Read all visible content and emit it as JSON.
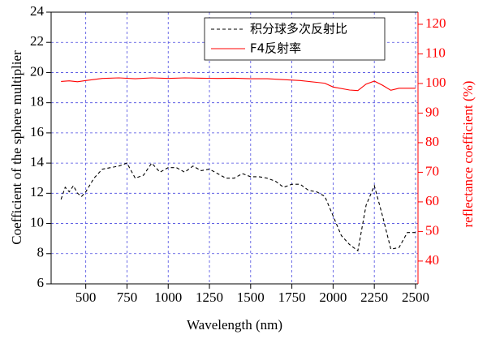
{
  "chart_data": {
    "type": "line",
    "x_label": "Wavelength (nm)",
    "y_label": "Coefficient of the sphere multiplier",
    "y2_label": "reflectance coefficient (%)",
    "xlim": [
      290,
      2515
    ],
    "xticks": [
      500,
      750,
      1000,
      1250,
      1500,
      1750,
      2000,
      2250,
      2500
    ],
    "ylim": [
      6,
      24
    ],
    "yticks": [
      6,
      8,
      10,
      12,
      14,
      16,
      18,
      20,
      22,
      24
    ],
    "y2lim": [
      32.3,
      124.1
    ],
    "y2ticks": [
      40,
      50,
      60,
      70,
      80,
      90,
      100,
      110,
      120
    ],
    "grid": true,
    "legend": "upper right",
    "series": [
      {
        "name": "积分球多次反射比",
        "color": "#000000",
        "dash": true,
        "x": [
          350,
          375,
          400,
          425,
          450,
          475,
          500,
          550,
          600,
          650,
          700,
          750,
          800,
          850,
          900,
          950,
          1000,
          1050,
          1100,
          1150,
          1200,
          1250,
          1300,
          1350,
          1400,
          1450,
          1500,
          1550,
          1600,
          1650,
          1700,
          1750,
          1800,
          1850,
          1900,
          1950,
          2000,
          2050,
          2100,
          2150,
          2200,
          2250,
          2300,
          2350,
          2400,
          2450,
          2500
        ],
        "values": [
          11.6,
          12.4,
          12.1,
          12.5,
          12.0,
          11.8,
          12.1,
          13.0,
          13.6,
          13.7,
          13.8,
          14.0,
          13.0,
          13.2,
          14.0,
          13.4,
          13.7,
          13.7,
          13.4,
          13.8,
          13.5,
          13.6,
          13.3,
          13.0,
          13.0,
          13.3,
          13.1,
          13.1,
          13.0,
          12.8,
          12.4,
          12.6,
          12.6,
          12.2,
          12.1,
          11.8,
          10.5,
          9.2,
          8.6,
          8.2,
          11.2,
          12.5,
          10.5,
          8.3,
          8.4,
          9.4,
          9.4
        ]
      },
      {
        "name": "F4反射率",
        "color": "#ff0000",
        "axis": "y2",
        "x": [
          350,
          400,
          450,
          500,
          600,
          700,
          800,
          900,
          1000,
          1100,
          1200,
          1300,
          1400,
          1500,
          1600,
          1700,
          1800,
          1900,
          1950,
          2000,
          2100,
          2150,
          2200,
          2250,
          2300,
          2350,
          2400,
          2500
        ],
        "values": [
          100.7,
          100.9,
          100.6,
          101.0,
          101.7,
          101.9,
          101.6,
          101.9,
          101.7,
          101.9,
          101.8,
          101.7,
          101.8,
          101.6,
          101.6,
          101.3,
          101.0,
          100.4,
          100.1,
          98.8,
          97.8,
          97.6,
          99.8,
          100.8,
          99.4,
          97.7,
          98.4,
          98.4
        ]
      }
    ]
  }
}
